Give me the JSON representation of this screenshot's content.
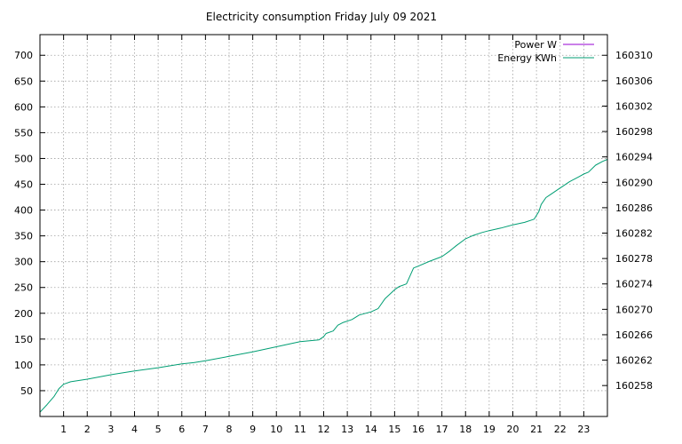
{
  "chart_data": {
    "type": "line",
    "title": "Electricity consumption Friday July 09 2021",
    "xlabel": "",
    "ylabel": "",
    "y2label": "",
    "grid": true,
    "legend_position": "top-right",
    "xlim": [
      0,
      24
    ],
    "ylim": [
      0,
      740
    ],
    "y2lim": [
      160253.13,
      160313.25
    ],
    "x_ticks": [
      1,
      2,
      3,
      4,
      5,
      6,
      7,
      8,
      9,
      10,
      11,
      12,
      13,
      14,
      15,
      16,
      17,
      18,
      19,
      20,
      21,
      22,
      23
    ],
    "y_ticks": [
      50,
      100,
      150,
      200,
      250,
      300,
      350,
      400,
      450,
      500,
      550,
      600,
      650,
      700
    ],
    "y2_ticks": [
      160258,
      160262,
      160266,
      160270,
      160274,
      160278,
      160282,
      160286,
      160290,
      160294,
      160298,
      160302,
      160306,
      160310
    ],
    "series": [
      {
        "name": "Power W",
        "axis": "y",
        "color": "#9400d3",
        "x": [],
        "values": []
      },
      {
        "name": "Energy KWh",
        "axis": "y2",
        "color": "#009e73",
        "x": [
          0,
          0.3,
          0.6,
          0.8,
          1.0,
          1.3,
          2,
          3,
          4,
          5,
          6,
          6.5,
          7,
          8,
          9,
          9.5,
          10,
          11,
          11.8,
          12.0,
          12.1,
          12.4,
          12.6,
          12.8,
          13.2,
          13.5,
          14,
          14.3,
          14.6,
          15.0,
          15.2,
          15.5,
          15.8,
          16.0,
          16.5,
          17.0,
          17.3,
          17.6,
          18.0,
          18.3,
          18.7,
          19,
          19.5,
          20,
          20.5,
          20.9,
          21.1,
          21.2,
          21.4,
          21.6,
          22.0,
          22.4,
          22.8,
          23.0,
          23.2,
          23.5,
          23.8,
          24.0
        ],
        "values": [
          160253.8,
          160255.0,
          160256.3,
          160257.5,
          160258.2,
          160258.6,
          160259.0,
          160259.7,
          160260.3,
          160260.8,
          160261.4,
          160261.6,
          160261.9,
          160262.6,
          160263.3,
          160263.7,
          160264.1,
          160264.9,
          160265.2,
          160265.7,
          160266.2,
          160266.6,
          160267.5,
          160267.9,
          160268.4,
          160269.1,
          160269.6,
          160270.1,
          160271.7,
          160273.1,
          160273.6,
          160274.0,
          160276.5,
          160276.8,
          160277.6,
          160278.3,
          160279.1,
          160280.0,
          160281.1,
          160281.6,
          160282.1,
          160282.4,
          160282.8,
          160283.3,
          160283.7,
          160284.2,
          160285.4,
          160286.5,
          160287.6,
          160288.1,
          160289.1,
          160290.1,
          160290.9,
          160291.3,
          160291.6,
          160292.7,
          160293.3,
          160293.6
        ]
      }
    ]
  }
}
